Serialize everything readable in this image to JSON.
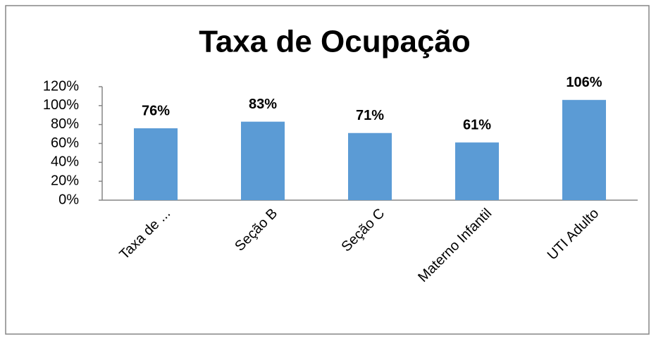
{
  "chart_data": {
    "type": "bar",
    "title": "Taxa de Ocupação",
    "categories": [
      "Taxa de ...",
      "Seção B",
      "Seção C",
      "Materno Infantil",
      "UTI Adulto"
    ],
    "values": [
      76,
      83,
      71,
      61,
      106
    ],
    "value_labels": [
      "76%",
      "83%",
      "71%",
      "61%",
      "106%"
    ],
    "color": "#5b9bd5",
    "ylim": [
      0,
      120
    ],
    "yticks": [
      {
        "value": 0,
        "label": "0%"
      },
      {
        "value": 20,
        "label": "20%"
      },
      {
        "value": 40,
        "label": "40%"
      },
      {
        "value": 60,
        "label": "60%"
      },
      {
        "value": 80,
        "label": "80%"
      },
      {
        "value": 100,
        "label": "100%"
      },
      {
        "value": 120,
        "label": "120%"
      }
    ],
    "grid": false
  }
}
